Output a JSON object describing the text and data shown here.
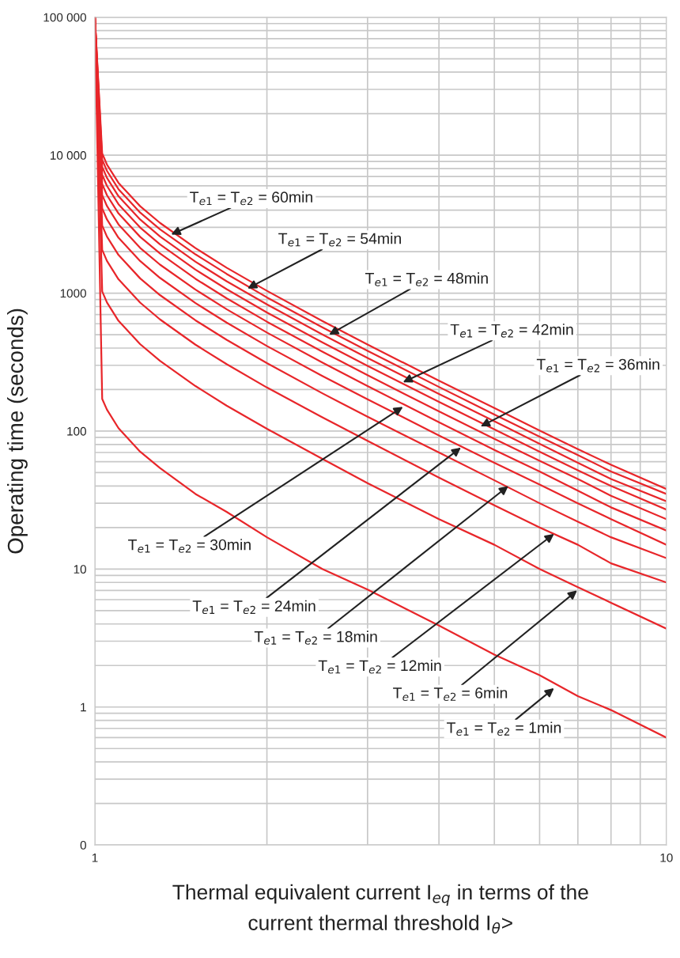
{
  "chart_data": {
    "type": "line",
    "xlabel": "Thermal equivalent current I$_{eq}$ in terms of the\ncurrent thermal threshold I$_{θ}$>",
    "ylabel": "Operating time (seconds)",
    "log": "xy",
    "grid": true,
    "xlim": [
      1,
      10
    ],
    "xticks": [
      1,
      10
    ],
    "ylim": [
      0.1,
      100000
    ],
    "yticks": [
      {
        "value": 0.1,
        "label": "0"
      },
      1,
      10,
      100,
      1000,
      {
        "value": 10000,
        "label": "10 000"
      },
      {
        "value": 100000,
        "label": "100 000"
      }
    ],
    "x": [
      1,
      1.03,
      1.05,
      1.1,
      1.2,
      1.3,
      1.5,
      1.7,
      2,
      2.5,
      3,
      4,
      5,
      6,
      7,
      8,
      10
    ],
    "series": [
      {
        "color": "#e8262a",
        "values": [
          100000,
          10300,
          8550,
          6300,
          4270,
          3230,
          2120,
          1530,
          1040,
          628,
          424,
          232,
          147,
          101,
          74,
          57,
          38
        ]
      },
      {
        "color": "#e8262a",
        "values": [
          100000,
          9260,
          7700,
          5670,
          3840,
          2900,
          1910,
          1380,
          932,
          565,
          382,
          209,
          132,
          91,
          67,
          51,
          35
        ]
      },
      {
        "color": "#e8262a",
        "values": [
          100000,
          8230,
          6840,
          5040,
          3420,
          2580,
          1690,
          1220,
          829,
          502,
          339,
          186,
          118,
          81,
          59,
          45,
          31
        ]
      },
      {
        "color": "#e8262a",
        "values": [
          100000,
          7200,
          5990,
          4410,
          2990,
          2260,
          1480,
          1070,
          725,
          440,
          297,
          163,
          103,
          71,
          52,
          40,
          27
        ]
      },
      {
        "color": "#e8262a",
        "values": [
          100000,
          6170,
          5130,
          3780,
          2560,
          1940,
          1270,
          918,
          621,
          377,
          254,
          139,
          88,
          61,
          45,
          34,
          23
        ]
      },
      {
        "color": "#e8262a",
        "values": [
          100000,
          5140,
          4280,
          3150,
          2130,
          1610,
          1060,
          765,
          518,
          314,
          212,
          116,
          73,
          51,
          37,
          28,
          19
        ]
      },
      {
        "color": "#e8262a",
        "values": [
          100000,
          4110,
          3420,
          2520,
          1710,
          1290,
          847,
          612,
          414,
          251,
          170,
          93,
          59,
          41,
          30,
          23,
          15
        ]
      },
      {
        "color": "#e8262a",
        "values": [
          100000,
          3090,
          2570,
          1890,
          1280,
          968,
          635,
          459,
          311,
          188,
          127,
          70,
          44,
          30,
          22,
          17,
          12
        ]
      },
      {
        "color": "#e8262a",
        "values": [
          100000,
          2060,
          1710,
          1260,
          854,
          645,
          423,
          306,
          207,
          126,
          85,
          46,
          29,
          20,
          15,
          11,
          8
        ]
      },
      {
        "color": "#e8262a",
        "values": [
          100000,
          1030,
          855,
          630,
          427,
          323,
          212,
          153,
          104,
          63,
          42,
          23,
          15,
          10,
          7.4,
          5.7,
          3.7
        ]
      },
      {
        "color": "#e8262a",
        "values": [
          100000,
          171,
          143,
          105,
          71,
          54,
          35,
          26,
          17,
          10,
          7.1,
          3.9,
          2.4,
          1.7,
          1.2,
          0.95,
          0.6
        ]
      }
    ],
    "annotations": [
      {
        "text": "T$_{e1}$ = T$_{e2}$ = 60min",
        "x": 1.36,
        "y": 2660
      },
      {
        "text": "T$_{e1}$ = T$_{e2}$ = 54min",
        "x": 1.85,
        "y": 1080
      },
      {
        "text": "T$_{e1}$ = T$_{e2}$ = 48min",
        "x": 2.57,
        "y": 500
      },
      {
        "text": "T$_{e1}$ = T$_{e2}$ = 42min",
        "x": 3.46,
        "y": 226
      },
      {
        "text": "T$_{e1}$ = T$_{e2}$ = 36min",
        "x": 4.73,
        "y": 108
      },
      {
        "text": "T$_{e1}$ = T$_{e2}$ = 30min",
        "x": 3.46,
        "y": 150
      },
      {
        "text": "T$_{e1}$ = T$_{e2}$ = 24min",
        "x": 4.37,
        "y": 76
      },
      {
        "text": "T$_{e1}$ = T$_{e2}$ = 18min",
        "x": 5.29,
        "y": 40
      },
      {
        "text": "T$_{e1}$ = T$_{e2}$ = 12min",
        "x": 6.36,
        "y": 18
      },
      {
        "text": "T$_{e1}$ = T$_{e2}$ = 6min",
        "x": 6.98,
        "y": 7
      },
      {
        "text": "T$_{e1}$ = T$_{e2}$ = 1min",
        "x": 6.36,
        "y": 1.37
      }
    ]
  }
}
